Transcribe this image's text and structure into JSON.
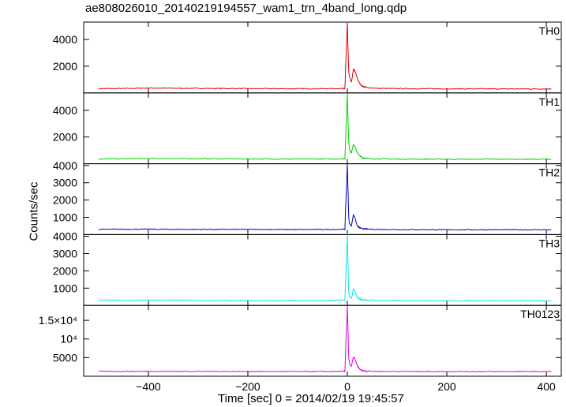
{
  "chart_data": {
    "type": "line",
    "title": "ae808026010_20140219194557_wam1_trn_4band_long.qdp",
    "xlabel": "Time [sec] 0 = 2014/02/19 19:45:57",
    "ylabel": "Counts/sec",
    "xlim": [
      -530,
      430
    ],
    "x_ticks": [
      -400,
      -200,
      0,
      200,
      400
    ],
    "x_tick_labels": [
      "−400",
      "−200",
      "0",
      "200",
      "400"
    ],
    "panels": [
      {
        "name": "TH0",
        "color": "#e00000",
        "ylim": [
          0,
          5300
        ],
        "y_ticks": [
          2000,
          4000
        ],
        "y_tick_labels": [
          "2000",
          "4000"
        ],
        "series": {
          "x": [
            -500,
            -450,
            -400,
            -300,
            -200,
            -100,
            -20,
            -5,
            0,
            1,
            2,
            3,
            5,
            8,
            10,
            12,
            15,
            18,
            20,
            25,
            30,
            40,
            60,
            100,
            200,
            300,
            400,
            410
          ],
          "y": [
            320,
            330,
            360,
            340,
            320,
            310,
            320,
            340,
            5300,
            3800,
            2500,
            1500,
            1100,
            800,
            1200,
            1750,
            1650,
            1350,
            1100,
            700,
            500,
            400,
            340,
            320,
            310,
            300,
            300,
            300
          ]
        }
      },
      {
        "name": "TH1",
        "color": "#00d000",
        "ylim": [
          0,
          5300
        ],
        "y_ticks": [
          2000,
          4000
        ],
        "y_tick_labels": [
          "2000",
          "4000"
        ],
        "series": {
          "x": [
            -500,
            -450,
            -400,
            -300,
            -200,
            -100,
            -20,
            -5,
            0,
            1,
            2,
            3,
            5,
            8,
            10,
            12,
            15,
            18,
            20,
            25,
            30,
            40,
            60,
            100,
            200,
            300,
            400,
            410
          ],
          "y": [
            360,
            370,
            390,
            380,
            360,
            350,
            360,
            380,
            5300,
            3800,
            2400,
            1500,
            1000,
            800,
            1100,
            1450,
            1300,
            1000,
            800,
            600,
            450,
            400,
            360,
            350,
            340,
            340,
            340,
            340
          ]
        }
      },
      {
        "name": "TH2",
        "color": "#0000c0",
        "ylim": [
          0,
          4100
        ],
        "y_ticks": [
          1000,
          2000,
          3000,
          4000
        ],
        "y_tick_labels": [
          "1000",
          "2000",
          "3000",
          "4000"
        ],
        "series": {
          "x": [
            -500,
            -450,
            -400,
            -300,
            -200,
            -100,
            -20,
            -5,
            0,
            1,
            2,
            3,
            5,
            8,
            10,
            12,
            15,
            18,
            20,
            25,
            30,
            40,
            60,
            100,
            200,
            300,
            400,
            410
          ],
          "y": [
            300,
            310,
            310,
            300,
            300,
            290,
            300,
            310,
            4100,
            3000,
            1800,
            900,
            600,
            500,
            800,
            1150,
            1000,
            700,
            500,
            400,
            340,
            320,
            300,
            290,
            280,
            280,
            280,
            280
          ]
        }
      },
      {
        "name": "TH3",
        "color": "#00e8e8",
        "ylim": [
          0,
          4100
        ],
        "y_ticks": [
          1000,
          2000,
          3000,
          4000
        ],
        "y_tick_labels": [
          "1000",
          "2000",
          "3000",
          "4000"
        ],
        "series": {
          "x": [
            -500,
            -450,
            -400,
            -300,
            -200,
            -100,
            -20,
            -5,
            0,
            1,
            2,
            3,
            5,
            8,
            10,
            12,
            15,
            18,
            20,
            25,
            30,
            40,
            60,
            100,
            200,
            300,
            400,
            410
          ],
          "y": [
            300,
            290,
            300,
            290,
            280,
            280,
            290,
            300,
            4100,
            2800,
            1400,
            700,
            500,
            400,
            600,
            950,
            850,
            600,
            450,
            380,
            320,
            300,
            290,
            280,
            270,
            270,
            270,
            270
          ]
        }
      },
      {
        "name": "TH0123",
        "color": "#e000e0",
        "ylim": [
          0,
          19000
        ],
        "y_ticks": [
          5000,
          10000,
          15000
        ],
        "y_tick_labels": [
          "5000",
          "10⁴",
          "1.5×10⁴"
        ],
        "series": {
          "x": [
            -500,
            -450,
            -400,
            -300,
            -200,
            -100,
            -20,
            -5,
            0,
            1,
            2,
            3,
            5,
            8,
            10,
            12,
            15,
            18,
            20,
            25,
            30,
            40,
            60,
            100,
            200,
            300,
            400,
            410
          ],
          "y": [
            1300,
            1300,
            1330,
            1300,
            1280,
            1260,
            1280,
            1320,
            19000,
            14000,
            8000,
            4500,
            3200,
            2600,
            3900,
            5100,
            4700,
            3600,
            2800,
            1900,
            1500,
            1350,
            1300,
            1280,
            1260,
            1250,
            1250,
            1250
          ]
        }
      }
    ]
  }
}
